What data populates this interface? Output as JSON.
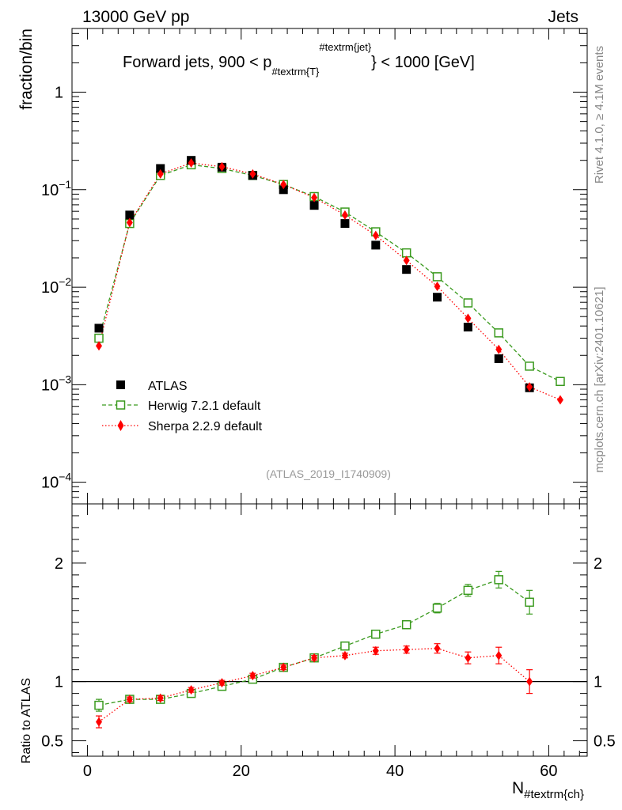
{
  "header": {
    "left": "13000 GeV pp",
    "right": "Jets"
  },
  "side_labels": {
    "rivet": "Rivet 4.1.0, ≥ 4.1M events",
    "mcplots": "mcplots.cern.ch [arXiv:2401.10621]"
  },
  "analysis_id": "(ATLAS_2019_I1740909)",
  "chart_data": [
    {
      "type": "scatter",
      "panel": "main",
      "title": "Forward jets, 900 < p_#textrm{T}^#textrm{jet} < 1000 [GeV]",
      "title_parts": {
        "prefix": "Forward jets, 900 < p",
        "sub": "#textrm{T}",
        "sup": "#textrm{jet}",
        "suffix": "} < 1000 [GeV]"
      },
      "ylabel": "fraction/bin",
      "yscale": "log",
      "ylim": [
        6e-05,
        4.5
      ],
      "xlim": [
        -2,
        65
      ],
      "y_ticks": [
        {
          "value": 1,
          "base": "1",
          "exp": ""
        },
        {
          "value": 0.1,
          "base": "10",
          "exp": "−1"
        },
        {
          "value": 0.01,
          "base": "10",
          "exp": "−2"
        },
        {
          "value": 0.001,
          "base": "10",
          "exp": "−3"
        },
        {
          "value": 0.0001,
          "base": "10",
          "exp": "−4"
        }
      ],
      "x": [
        1.5,
        5.5,
        9.5,
        13.5,
        17.5,
        21.5,
        25.5,
        29.5,
        33.5,
        37.5,
        41.5,
        45.5,
        49.5,
        53.5,
        57.5,
        61.5
      ],
      "series": [
        {
          "name": "ATLAS",
          "marker": "filled-square",
          "color": "#000000",
          "values": [
            0.0038,
            0.055,
            0.165,
            0.2,
            0.17,
            0.14,
            0.1,
            0.069,
            0.045,
            0.027,
            0.0152,
            0.0079,
            0.0039,
            0.00185,
            0.00093,
            null
          ]
        },
        {
          "name": "Herwig 7.2.1 default",
          "marker": "open-square",
          "line": "dashed",
          "color": "#3a9a1e",
          "values": [
            0.003,
            0.045,
            0.14,
            0.18,
            0.165,
            0.14,
            0.113,
            0.085,
            0.059,
            0.037,
            0.0225,
            0.0128,
            0.0069,
            0.0034,
            0.00155,
            0.00108
          ]
        },
        {
          "name": "Sherpa 2.2.9 default",
          "marker": "filled-diamond",
          "line": "dotted",
          "color": "#ff0000",
          "values": [
            0.0025,
            0.046,
            0.145,
            0.188,
            0.172,
            0.145,
            0.113,
            0.083,
            0.055,
            0.034,
            0.0188,
            0.0102,
            0.0048,
            0.0023,
            0.00095,
            0.0007
          ]
        }
      ]
    },
    {
      "type": "scatter",
      "panel": "ratio",
      "ylabel": "Ratio to ATLAS",
      "xlabel": "N_#textrm{ch}",
      "xlabel_parts": {
        "main": "N",
        "sub": "#textrm{ch}"
      },
      "ylim": [
        0.37,
        2.5
      ],
      "xlim": [
        -2,
        65
      ],
      "y_ticks": [
        "0.5",
        "1",
        "2"
      ],
      "y_tick_values": [
        0.5,
        1,
        2
      ],
      "x_ticks": [
        "0",
        "20",
        "40",
        "60"
      ],
      "x_tick_values": [
        0,
        20,
        40,
        60
      ],
      "reference_line": 1,
      "x": [
        1.5,
        5.5,
        9.5,
        13.5,
        17.5,
        21.5,
        25.5,
        29.5,
        33.5,
        37.5,
        41.5,
        45.5,
        49.5,
        53.5,
        57.5
      ],
      "series": [
        {
          "name": "Herwig 7.2.1 default",
          "color": "#3a9a1e",
          "values": [
            0.8,
            0.85,
            0.85,
            0.9,
            0.96,
            1.02,
            1.12,
            1.2,
            1.3,
            1.4,
            1.48,
            1.62,
            1.77,
            1.86,
            1.67
          ],
          "errors": [
            0.05,
            0.02,
            0.02,
            0.02,
            0.02,
            0.02,
            0.02,
            0.02,
            0.02,
            0.03,
            0.03,
            0.04,
            0.05,
            0.07,
            0.1
          ]
        },
        {
          "name": "Sherpa 2.2.9 default",
          "color": "#ff0000",
          "values": [
            0.66,
            0.85,
            0.86,
            0.93,
            0.99,
            1.05,
            1.12,
            1.2,
            1.22,
            1.26,
            1.27,
            1.28,
            1.2,
            1.22,
            1.0
          ],
          "errors": [
            0.05,
            0.02,
            0.02,
            0.02,
            0.02,
            0.02,
            0.02,
            0.02,
            0.02,
            0.03,
            0.03,
            0.04,
            0.05,
            0.07,
            0.1
          ]
        }
      ]
    }
  ]
}
